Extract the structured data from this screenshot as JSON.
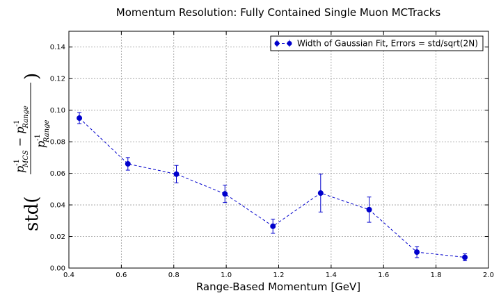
{
  "chart_data": {
    "type": "scatter",
    "title": "Momentum Resolution: Fully Contained Single Muon MCTracks",
    "xlabel": "Range-Based Momentum [GeV]",
    "ylabel": {
      "prefix": "std(",
      "num_a": "p",
      "num_a_sup": "-1",
      "num_a_sub": "MCS",
      "minus": " − ",
      "num_b": "p",
      "num_b_sup": "-1",
      "num_b_sub": "Range",
      "den": "p",
      "den_sup": "-1",
      "den_sub": "Range",
      "suffix": ")"
    },
    "xlim": [
      0.4,
      2.0
    ],
    "ylim": [
      0.0,
      0.15
    ],
    "xticks": [
      "0.4",
      "0.6",
      "0.8",
      "1.0",
      "1.2",
      "1.4",
      "1.6",
      "1.8",
      "2.0"
    ],
    "yticks": [
      "0.00",
      "0.02",
      "0.04",
      "0.06",
      "0.08",
      "0.10",
      "0.12",
      "0.14"
    ],
    "grid": true,
    "legend_position": "top-right",
    "series": [
      {
        "name": "Width of Gaussian Fit, Errors = std/sqrt(2N)",
        "color": "#0000cc",
        "line_style": "dashed",
        "marker": "circle",
        "x": [
          0.44,
          0.625,
          0.81,
          0.995,
          1.178,
          1.36,
          1.545,
          1.727,
          1.91
        ],
        "y": [
          0.095,
          0.066,
          0.0595,
          0.047,
          0.0265,
          0.0475,
          0.037,
          0.0101,
          0.0068
        ],
        "err": [
          0.0035,
          0.004,
          0.0055,
          0.0055,
          0.0045,
          0.012,
          0.008,
          0.0035,
          0.0022
        ]
      }
    ]
  }
}
